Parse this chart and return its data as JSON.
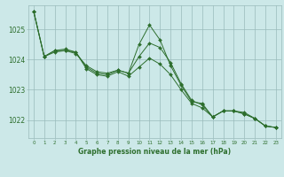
{
  "title": "Graphe pression niveau de la mer (hPa)",
  "bg_color": "#cce8e8",
  "grid_color": "#99bbbb",
  "line_color": "#2d6e2d",
  "marker_color": "#2d6e2d",
  "x_labels": [
    "0",
    "1",
    "2",
    "3",
    "4",
    "5",
    "6",
    "7",
    "8",
    "9",
    "10",
    "11",
    "12",
    "13",
    "14",
    "15",
    "16",
    "17",
    "18",
    "19",
    "20",
    "21",
    "22",
    "23"
  ],
  "ylim": [
    1021.4,
    1025.8
  ],
  "yticks": [
    1022,
    1023,
    1024,
    1025
  ],
  "series": [
    [
      1025.6,
      1024.1,
      1024.3,
      1024.3,
      1024.2,
      1023.8,
      1023.6,
      1023.55,
      1023.65,
      1023.55,
      1024.5,
      1025.15,
      1024.65,
      1023.8,
      1023.15,
      1022.6,
      1022.55,
      1022.1,
      1022.3,
      1022.3,
      1022.2,
      1022.05,
      1021.8,
      1021.75
    ],
    [
      1025.6,
      1024.1,
      1024.3,
      1024.35,
      1024.25,
      1023.75,
      1023.55,
      1023.5,
      1023.65,
      1023.55,
      1024.1,
      1024.55,
      1024.4,
      1023.9,
      1023.2,
      1022.65,
      1022.5,
      1022.1,
      1022.3,
      1022.3,
      1022.25,
      1022.05,
      1021.8,
      1021.75
    ],
    [
      1025.6,
      1024.1,
      1024.25,
      1024.3,
      1024.25,
      1023.7,
      1023.5,
      1023.45,
      1023.6,
      1023.45,
      1023.75,
      1024.05,
      1023.85,
      1023.5,
      1023.0,
      1022.55,
      1022.4,
      1022.1,
      1022.3,
      1022.3,
      1022.2,
      1022.05,
      1021.8,
      1021.75
    ]
  ]
}
